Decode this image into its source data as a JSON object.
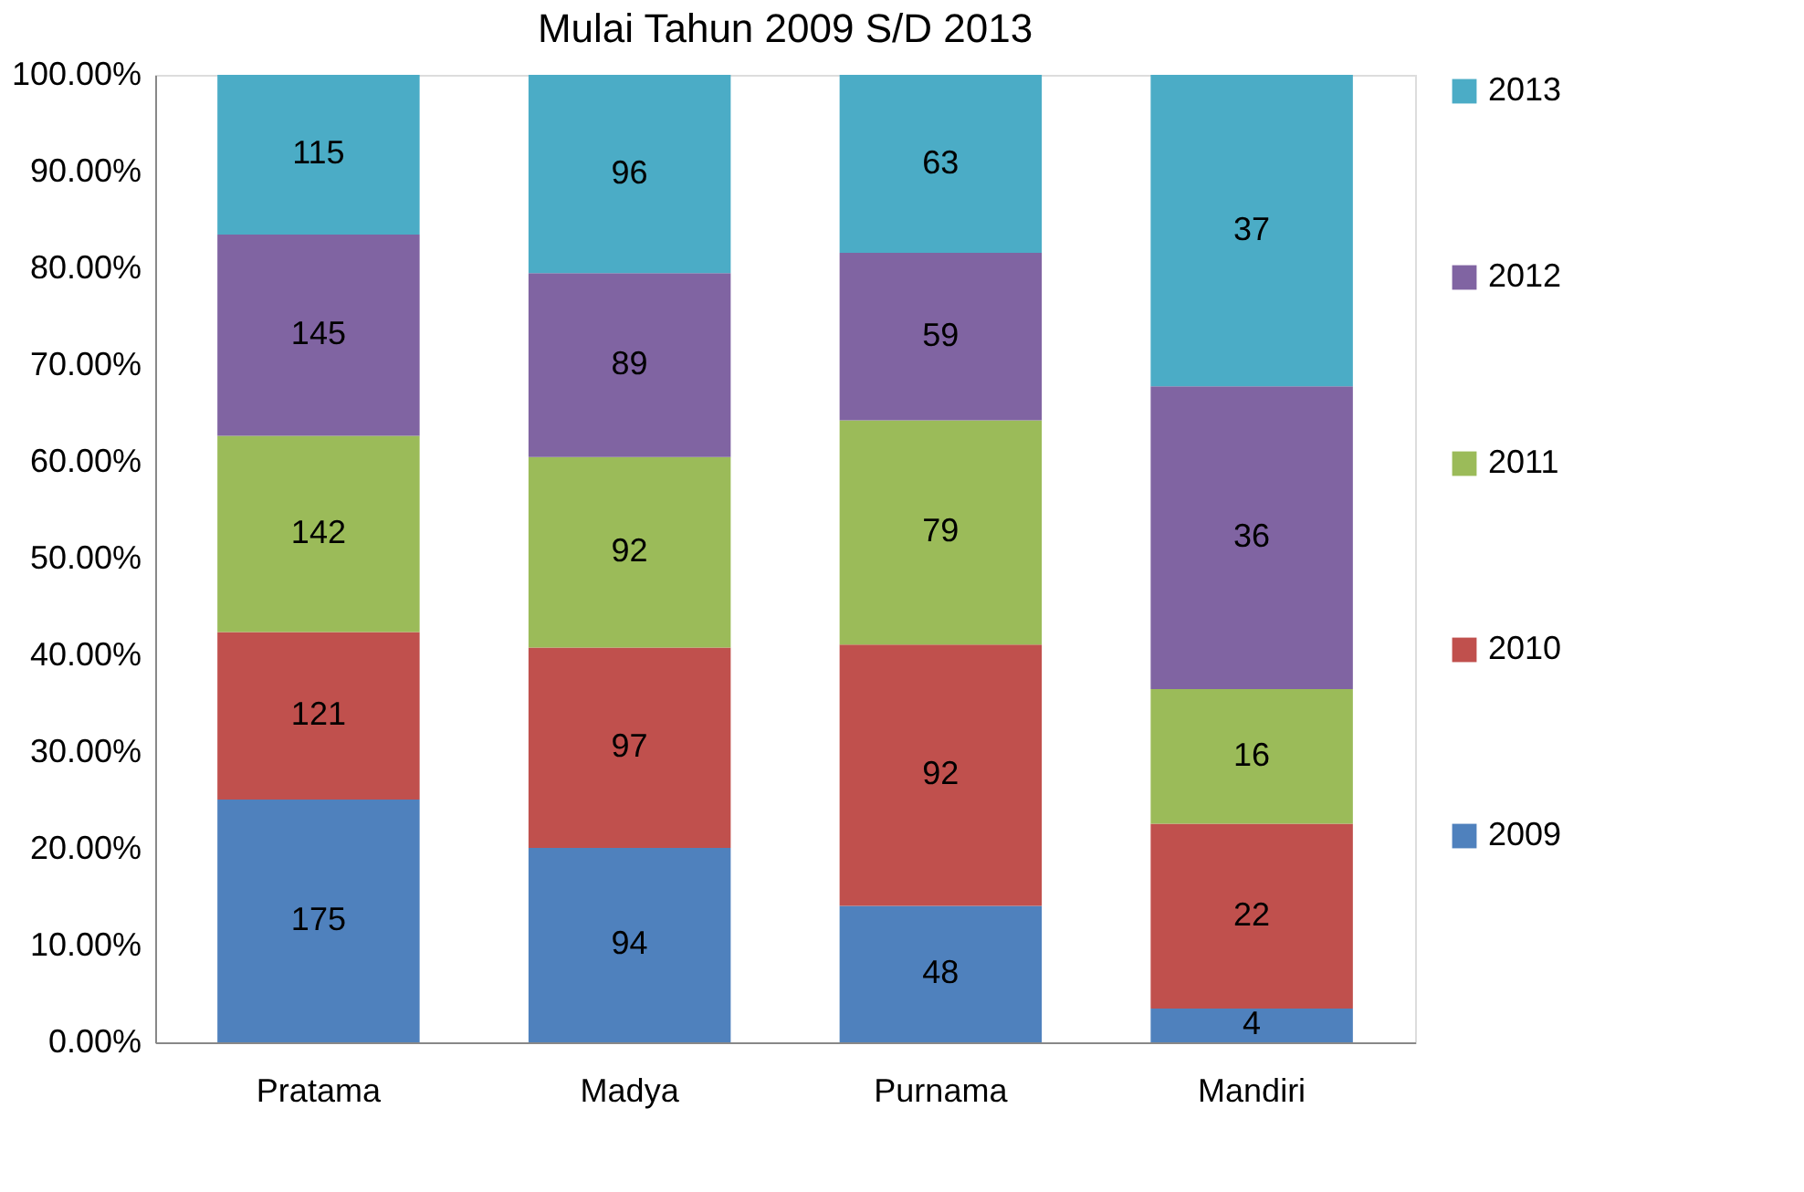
{
  "chart_data": {
    "type": "bar",
    "title": "Mulai Tahun 2009 S/D 2013",
    "stacked": true,
    "categories": [
      "Pratama",
      "Madya",
      "Purnama",
      "Mandiri"
    ],
    "series": [
      {
        "name": "2009",
        "color": "#4f81bd",
        "values": [
          25.1,
          20.1,
          14.1,
          3.5
        ]
      },
      {
        "name": "2010",
        "color": "#c0504d",
        "values": [
          17.3,
          20.7,
          27.0,
          19.1
        ]
      },
      {
        "name": "2011",
        "color": "#9bbb59",
        "values": [
          20.3,
          19.7,
          23.2,
          13.9
        ]
      },
      {
        "name": "2012",
        "color": "#8064a2",
        "values": [
          20.8,
          19.0,
          17.3,
          31.3
        ]
      },
      {
        "name": "2013",
        "color": "#4bacc6",
        "values": [
          16.5,
          20.5,
          18.4,
          32.2
        ]
      }
    ],
    "annotations": [
      "175",
      "121",
      "142",
      "145",
      "115",
      "94",
      "97",
      "92",
      "89",
      "96",
      "48",
      "92",
      "79",
      "59",
      "63",
      "4",
      "22",
      "16",
      "36",
      "37"
    ],
    "ylim": [
      0,
      100
    ],
    "yticks": [
      {
        "value": 0,
        "label": "0.00%"
      },
      {
        "value": 10,
        "label": "10.00%"
      },
      {
        "value": 20,
        "label": "20.00%"
      },
      {
        "value": 30,
        "label": "30.00%"
      },
      {
        "value": 40,
        "label": "40.00%"
      },
      {
        "value": 50,
        "label": "50.00%"
      },
      {
        "value": 60,
        "label": "60.00%"
      },
      {
        "value": 70,
        "label": "70.00%"
      },
      {
        "value": 80,
        "label": "80.00%"
      },
      {
        "value": 90,
        "label": "90.00%"
      },
      {
        "value": 100,
        "label": "100.00%"
      }
    ],
    "grid": false,
    "legend": "right"
  }
}
